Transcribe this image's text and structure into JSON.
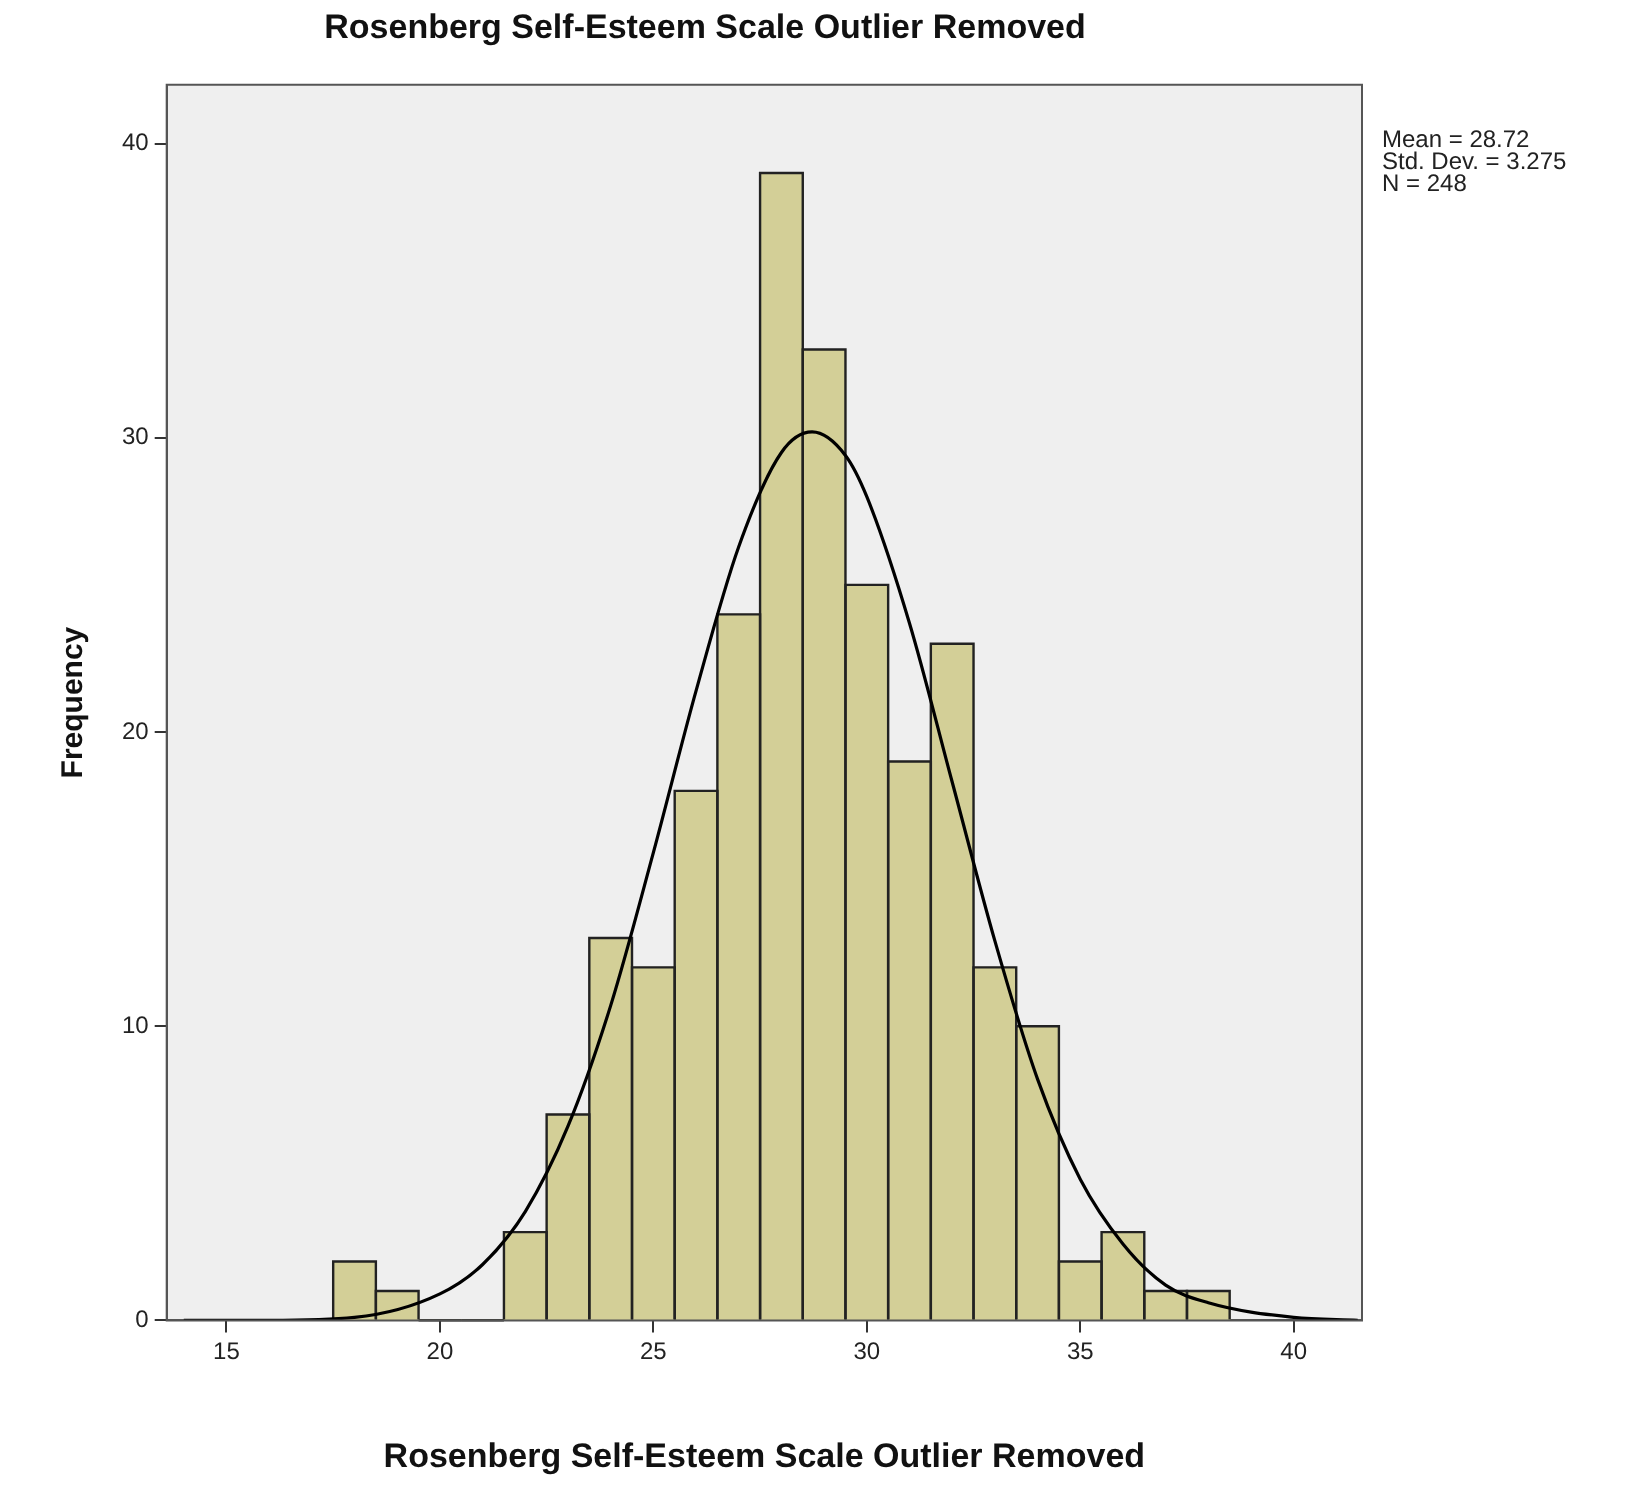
{
  "chart_data": {
    "type": "histogram",
    "title": "Rosenberg Self-Esteem Scale Outlier Removed",
    "xlabel": "Rosenberg Self-Esteem Scale Outlier Removed",
    "ylabel": "Frequency",
    "bins": [
      17.5,
      18.5,
      19.5,
      20.5,
      21.5,
      22.5,
      23.5,
      24.5,
      25.5,
      26.5,
      27.5,
      28.5,
      29.5,
      30.5,
      31.5,
      32.5,
      33.5,
      34.5,
      35.5,
      36.5,
      37.5,
      38.5
    ],
    "values": [
      2,
      1,
      0,
      0,
      3,
      7,
      13,
      12,
      18,
      24,
      39,
      33,
      25,
      19,
      23,
      12,
      10,
      2,
      3,
      1,
      1
    ],
    "color": "#d3cf97",
    "series": [
      {
        "type": "line",
        "color": "#000000",
        "marker": "none",
        "x": [
          14,
          16,
          18,
          20,
          21,
          22,
          23,
          24,
          25,
          26,
          27,
          28,
          28.72,
          29.5,
          30,
          31,
          32,
          33,
          34,
          35,
          36,
          37,
          38,
          40,
          41.5
        ],
        "values": [
          0,
          0,
          0.1,
          0.9,
          1.9,
          3.7,
          6.6,
          10.7,
          15.9,
          21.4,
          26.3,
          29.5,
          30.2,
          29.4,
          28,
          23.7,
          18.3,
          12.9,
          8.2,
          4.8,
          2.6,
          1.2,
          0.6,
          0.1,
          0
        ]
      }
    ],
    "xlim": [
      13.6,
      41.6
    ],
    "xticks": [
      15,
      20,
      25,
      30,
      35,
      40
    ],
    "ylim": [
      0,
      42
    ],
    "yticks": [
      0,
      10,
      20,
      30,
      40
    ],
    "grid": false,
    "legend": false,
    "annotations": [
      "Mean = 28.72",
      "Std. Dev. = 3.275",
      "N = 248"
    ]
  }
}
